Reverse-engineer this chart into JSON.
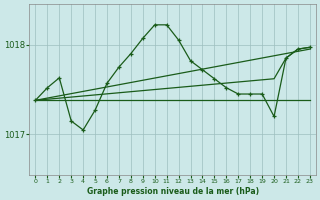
{
  "title": "Graphe pression niveau de la mer (hPa)",
  "bg_color": "#cce8e8",
  "grid_color": "#9dbfbf",
  "line_color": "#1a5c1a",
  "x_ticks": [
    0,
    1,
    2,
    3,
    4,
    5,
    6,
    7,
    8,
    9,
    10,
    11,
    12,
    13,
    14,
    15,
    16,
    17,
    18,
    19,
    20,
    21,
    22,
    23
  ],
  "xlim": [
    -0.5,
    23.5
  ],
  "ylim": [
    1016.55,
    1018.45
  ],
  "yticks": [
    1017,
    1018
  ],
  "series": [
    {
      "x": [
        0,
        1,
        2,
        3,
        4,
        5,
        6,
        7,
        8,
        9,
        10,
        11,
        12,
        13,
        14,
        15,
        16,
        17,
        18,
        19,
        20,
        21,
        22,
        23
      ],
      "y": [
        1017.4,
        1017.55,
        1017.65,
        1017.15,
        1017.08,
        1017.3,
        1017.58,
        1017.78,
        1017.92,
        1018.08,
        1018.22,
        1018.22,
        1018.05,
        1017.82,
        1017.72,
        1017.62,
        1017.52,
        1017.45,
        1017.45,
        1017.45,
        1017.22,
        1017.88,
        1017.97,
        1017.97
      ],
      "marker": "+"
    },
    {
      "x": [
        0,
        3,
        4,
        9,
        10,
        11,
        12,
        13,
        14,
        15,
        16,
        17,
        18,
        20,
        21,
        22,
        23
      ],
      "y": [
        1017.4,
        1017.4,
        1017.4,
        1017.4,
        1017.4,
        1017.4,
        1017.4,
        1017.4,
        1017.4,
        1017.4,
        1017.4,
        1017.4,
        1017.4,
        1017.4,
        1017.4,
        1017.4,
        1017.4
      ],
      "marker": null
    },
    {
      "x": [
        0,
        23
      ],
      "y": [
        1017.35,
        1017.97
      ],
      "marker": null
    },
    {
      "x": [
        0,
        10,
        23
      ],
      "y": [
        1017.4,
        1017.72,
        1017.97
      ],
      "marker": null
    }
  ]
}
